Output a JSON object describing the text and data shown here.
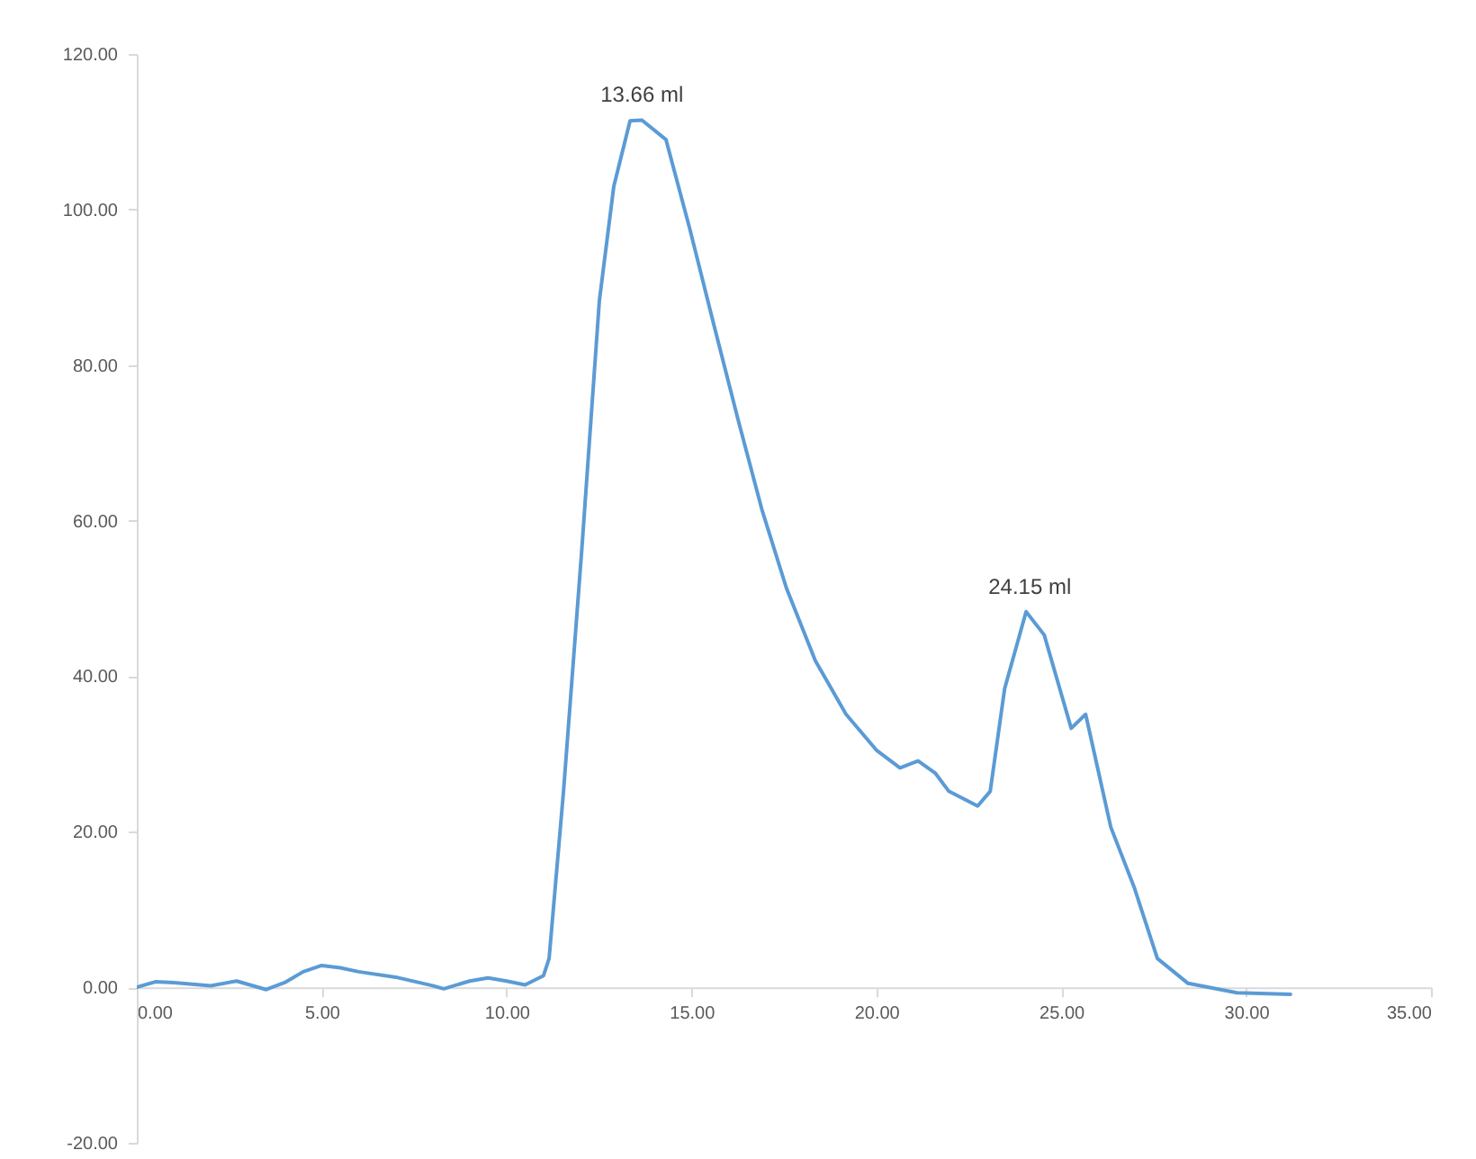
{
  "chart_data": {
    "type": "line",
    "x": [
      0,
      0.5,
      1,
      1.5,
      2,
      2.7,
      3.5,
      4,
      4.5,
      5,
      5.5,
      6,
      7,
      8,
      8.3,
      9,
      9.5,
      10,
      10.5,
      11,
      11.15,
      11.54,
      12.03,
      12.51,
      12.9,
      13.34,
      13.66,
      14.31,
      14.95,
      15.6,
      16.26,
      16.9,
      17.57,
      18.35,
      19.18,
      20,
      20.64,
      21.13,
      21.6,
      21.96,
      22.74,
      23.08,
      23.47,
      24.05,
      24.54,
      25.27,
      25.66,
      26.34,
      26.97,
      27.6,
      28.43,
      29.75,
      31.2
    ],
    "series": [
      {
        "color": "#5b9bd5",
        "values": [
          0,
          0.7,
          0.6,
          0.4,
          0.2,
          0.8,
          -0.3,
          0.6,
          2,
          2.8,
          2.5,
          2,
          1.3,
          0.2,
          -0.2,
          0.8,
          1.2,
          0.8,
          0.3,
          1.5,
          3.7,
          25.2,
          56,
          88.3,
          103,
          111.4,
          111.5,
          109,
          97.6,
          85.3,
          73,
          61.5,
          51.3,
          42,
          35.1,
          30.5,
          28.2,
          29.1,
          27.5,
          25.2,
          23.3,
          25.2,
          38.4,
          48.3,
          45.3,
          33.3,
          35.1,
          20.6,
          12.9,
          3.7,
          0.5,
          -0.7,
          -0.9
        ]
      }
    ],
    "xlim": [
      0,
      35
    ],
    "xticks": [
      {
        "value": 0,
        "label": "0.00"
      },
      {
        "value": 5,
        "label": "5.00"
      },
      {
        "value": 10,
        "label": "10.00"
      },
      {
        "value": 15,
        "label": "15.00"
      },
      {
        "value": 20,
        "label": "20.00"
      },
      {
        "value": 25,
        "label": "25.00"
      },
      {
        "value": 30,
        "label": "30.00"
      },
      {
        "value": 35,
        "label": "35.00"
      }
    ],
    "ylim": [
      -20,
      120
    ],
    "yticks": [
      {
        "value": -20,
        "label": "-20.00"
      },
      {
        "value": 0,
        "label": "0.00"
      },
      {
        "value": 20,
        "label": "20.00"
      },
      {
        "value": 40,
        "label": "40.00"
      },
      {
        "value": 60,
        "label": "60.00"
      },
      {
        "value": 80,
        "label": "80.00"
      },
      {
        "value": 100,
        "label": "100.00"
      },
      {
        "value": 120,
        "label": "120.00"
      }
    ],
    "annotations": [
      {
        "text": "13.66 ml",
        "x": 13.66,
        "y": 111.5
      },
      {
        "text": "24.15 ml",
        "x": 24.15,
        "y": 48.3
      }
    ],
    "grid": false,
    "marker": "none",
    "line_style": "solid"
  }
}
